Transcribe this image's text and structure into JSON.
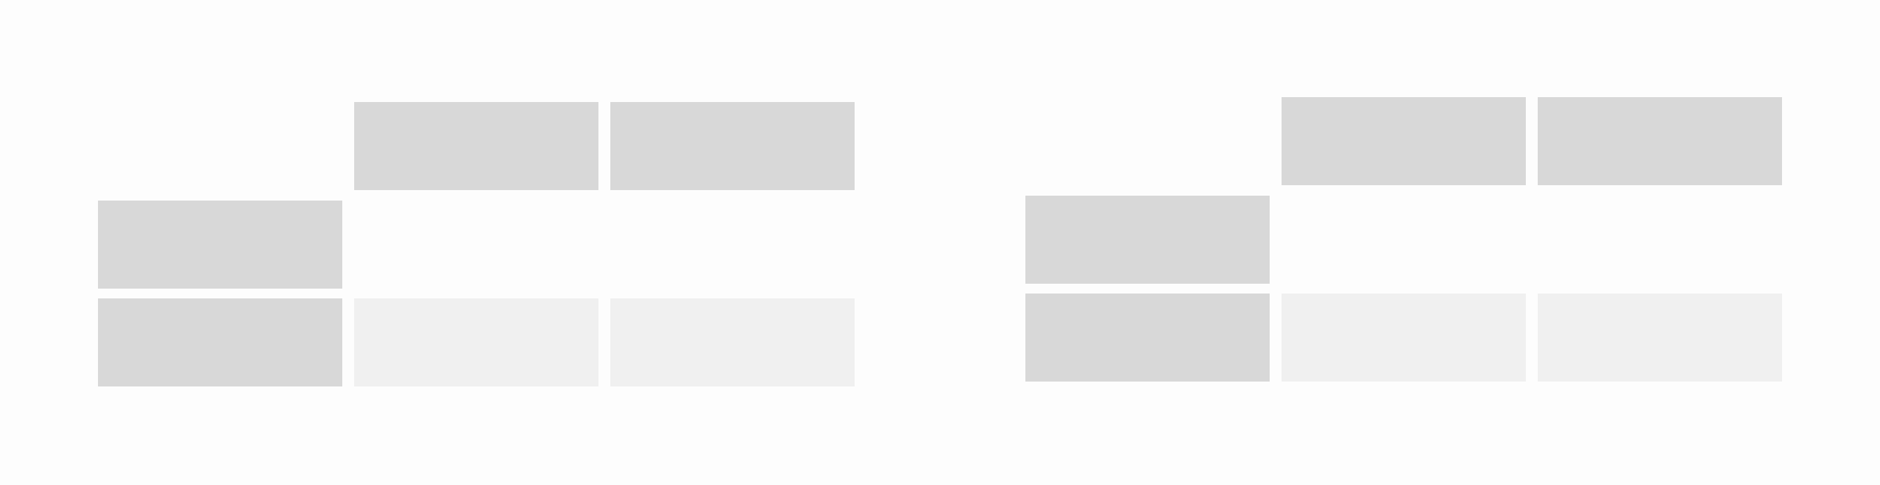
{
  "colors": {
    "background": "#fdfdfd",
    "header_cell": "#d8d8d8",
    "data_cell": "#f0f0f0"
  },
  "tables": [
    {
      "name": "left-table",
      "column_headers": [
        "",
        "",
        ""
      ],
      "row_headers": [
        "",
        ""
      ],
      "cells": [
        [
          "",
          ""
        ]
      ]
    },
    {
      "name": "right-table",
      "column_headers": [
        "",
        "",
        ""
      ],
      "row_headers": [
        "",
        ""
      ],
      "cells": [
        [
          "",
          ""
        ]
      ]
    }
  ]
}
